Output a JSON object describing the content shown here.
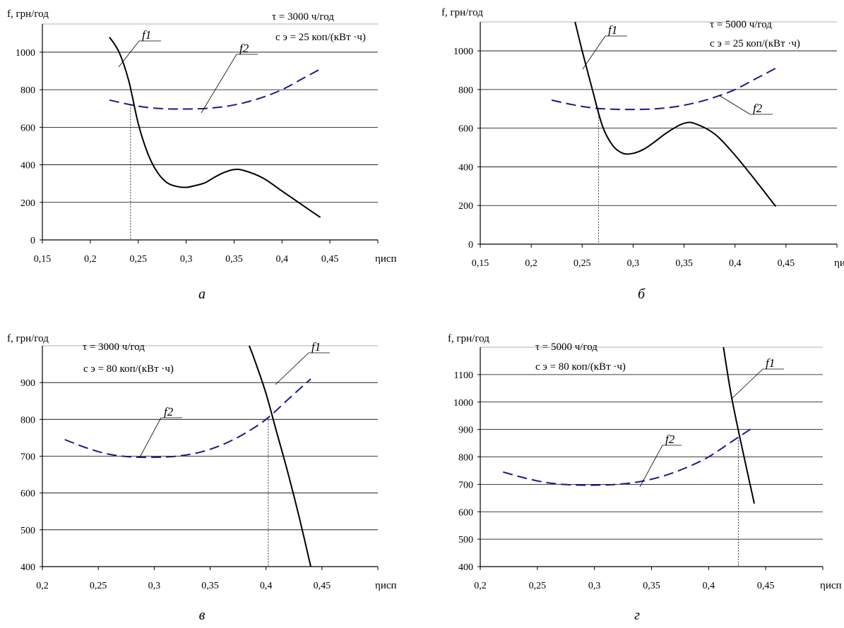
{
  "chart_data": [
    {
      "type": "line",
      "caption": "а",
      "ylabel": "f, грн/год",
      "xlabel": "ηисп",
      "xlim": [
        0.15,
        0.5
      ],
      "ylim": [
        0,
        1150
      ],
      "x_ticks": [
        "0,15",
        "0,2",
        "0,25",
        "0,3",
        "0,35",
        "0,4",
        "0,45"
      ],
      "y_ticks": [
        "0",
        "200",
        "400",
        "600",
        "800",
        "1000"
      ],
      "grid": true,
      "annotation": [
        "τ = 3000 ч/год",
        "c э = 25 коп/(кВт ·ч)"
      ],
      "series": [
        {
          "name": "f1",
          "style": "solid",
          "color": "#000000",
          "x": [
            0.22,
            0.23,
            0.24,
            0.25,
            0.26,
            0.27,
            0.28,
            0.29,
            0.3,
            0.31,
            0.32,
            0.33,
            0.34,
            0.35,
            0.36,
            0.38,
            0.4,
            0.42,
            0.44
          ],
          "y": [
            1080,
            1000,
            850,
            620,
            460,
            360,
            305,
            285,
            280,
            290,
            305,
            335,
            360,
            375,
            370,
            330,
            260,
            190,
            120
          ]
        },
        {
          "name": "f2",
          "style": "dashed",
          "color": "#1a1a8c",
          "x": [
            0.22,
            0.24,
            0.26,
            0.28,
            0.3,
            0.32,
            0.34,
            0.36,
            0.38,
            0.4,
            0.42,
            0.44
          ],
          "y": [
            745,
            722,
            705,
            698,
            697,
            700,
            710,
            730,
            760,
            800,
            855,
            910
          ]
        }
      ],
      "marker_x": 0.242
    },
    {
      "type": "line",
      "caption": "б",
      "ylabel": "f, грн/год",
      "xlabel": "ηисп",
      "xlim": [
        0.15,
        0.5
      ],
      "ylim": [
        0,
        1150
      ],
      "x_ticks": [
        "0,15",
        "0,2",
        "0,25",
        "0,3",
        "0,35",
        "0,4",
        "0,45"
      ],
      "y_ticks": [
        "0",
        "200",
        "400",
        "600",
        "800",
        "1000"
      ],
      "grid": true,
      "annotation": [
        "τ = 5000 ч/год",
        "c э = 25 коп/(кВт ·ч)"
      ],
      "series": [
        {
          "name": "f1",
          "style": "solid",
          "color": "#000000",
          "x": [
            0.243,
            0.25,
            0.26,
            0.27,
            0.28,
            0.29,
            0.3,
            0.31,
            0.32,
            0.33,
            0.34,
            0.35,
            0.36,
            0.38,
            0.4,
            0.42,
            0.44
          ],
          "y": [
            1150,
            1000,
            800,
            610,
            510,
            470,
            470,
            490,
            525,
            565,
            600,
            625,
            625,
            570,
            460,
            330,
            195
          ]
        },
        {
          "name": "f2",
          "style": "dashed",
          "color": "#1a1a8c",
          "x": [
            0.22,
            0.24,
            0.26,
            0.28,
            0.3,
            0.32,
            0.34,
            0.36,
            0.38,
            0.4,
            0.42,
            0.44
          ],
          "y": [
            745,
            722,
            705,
            698,
            697,
            700,
            710,
            730,
            760,
            800,
            855,
            910
          ]
        }
      ],
      "marker_x": 0.266
    },
    {
      "type": "line",
      "caption": "в",
      "ylabel": "f, грн/год",
      "xlabel": "ηисп",
      "xlim": [
        0.2,
        0.5
      ],
      "ylim": [
        400,
        1000
      ],
      "x_ticks": [
        "0,2",
        "0,25",
        "0,3",
        "0,35",
        "0,4",
        "0,45"
      ],
      "y_ticks": [
        "400",
        "500",
        "600",
        "700",
        "800",
        "900"
      ],
      "grid": true,
      "annotation": [
        "τ = 3000 ч/год",
        "c э = 80 коп/(кВт ·ч)"
      ],
      "series": [
        {
          "name": "f1",
          "style": "solid",
          "color": "#000000",
          "x": [
            0.385,
            0.39,
            0.4,
            0.41,
            0.42,
            0.43,
            0.44
          ],
          "y": [
            1000,
            960,
            870,
            760,
            650,
            530,
            400
          ]
        },
        {
          "name": "f2",
          "style": "dashed",
          "color": "#1a1a8c",
          "x": [
            0.22,
            0.24,
            0.26,
            0.28,
            0.3,
            0.32,
            0.34,
            0.36,
            0.38,
            0.4,
            0.42,
            0.44
          ],
          "y": [
            745,
            722,
            705,
            698,
            697,
            700,
            710,
            730,
            760,
            800,
            855,
            910
          ]
        }
      ],
      "marker_x": 0.402
    },
    {
      "type": "line",
      "caption": "г",
      "ylabel": "f, грн/год",
      "xlabel": "ηисп",
      "xlim": [
        0.2,
        0.5
      ],
      "ylim": [
        400,
        1200
      ],
      "x_ticks": [
        "0,2",
        "0,25",
        "0,3",
        "0,35",
        "0,4",
        "0,45"
      ],
      "y_ticks": [
        "400",
        "500",
        "600",
        "700",
        "800",
        "900",
        "1000",
        "1100"
      ],
      "grid": true,
      "annotation": [
        "τ = 5000 ч/год",
        "c э = 80 коп/(кВт ·ч)"
      ],
      "series": [
        {
          "name": "f1",
          "style": "solid",
          "color": "#000000",
          "x": [
            0.413,
            0.42,
            0.43,
            0.44
          ],
          "y": [
            1200,
            1020,
            820,
            630
          ]
        },
        {
          "name": "f2",
          "style": "dashed",
          "color": "#1a1a8c",
          "x": [
            0.22,
            0.24,
            0.26,
            0.28,
            0.3,
            0.32,
            0.34,
            0.36,
            0.38,
            0.4,
            0.42,
            0.44
          ],
          "y": [
            745,
            722,
            705,
            698,
            697,
            700,
            710,
            730,
            760,
            800,
            855,
            910
          ]
        }
      ],
      "marker_x": 0.426
    }
  ]
}
